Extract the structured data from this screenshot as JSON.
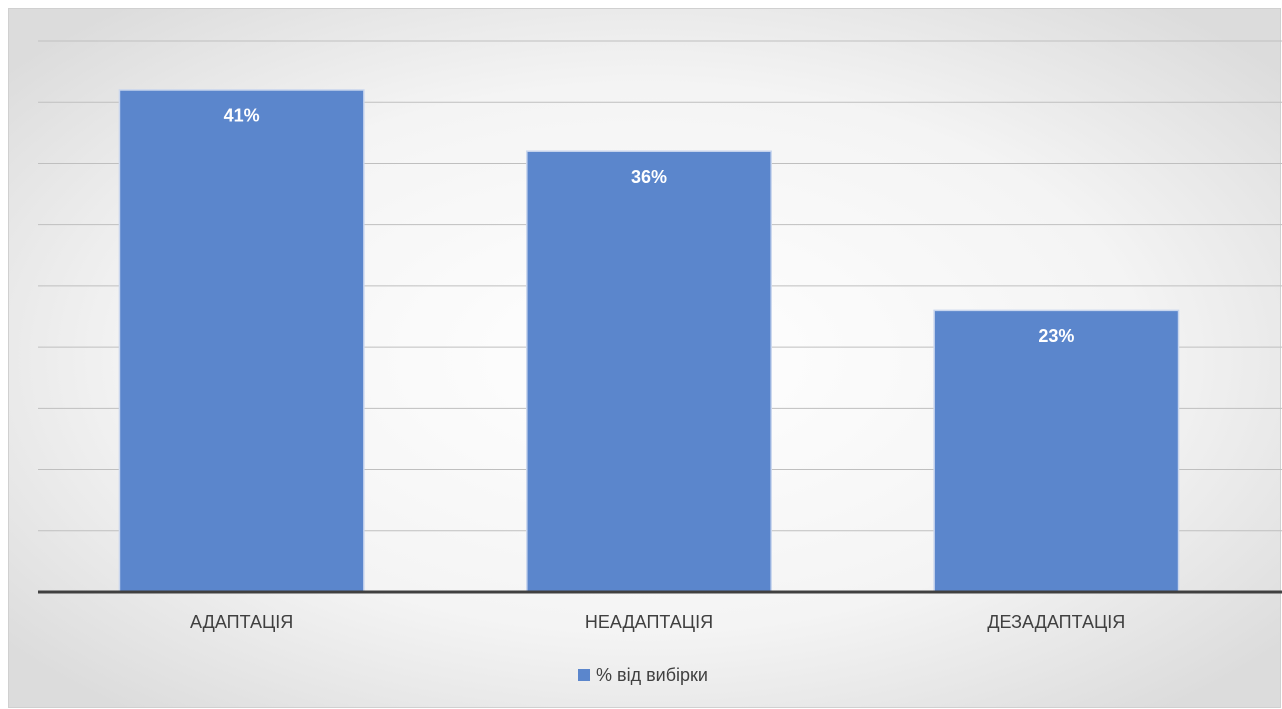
{
  "chart_data": {
    "type": "bar",
    "categories": [
      "АДАПТАЦІЯ",
      "НЕАДАПТАЦІЯ",
      "ДЕЗАДАПТАЦІЯ"
    ],
    "series": [
      {
        "name": "% від вибірки",
        "color": "#5b86cc",
        "values": [
          41,
          36,
          23
        ],
        "value_labels": [
          "41%",
          "36%",
          "23%"
        ]
      }
    ],
    "ylim": [
      0,
      45
    ],
    "yticks": [
      0,
      5,
      10,
      15,
      20,
      25,
      30,
      35,
      40,
      45
    ],
    "grid": true,
    "legend": "bottom"
  }
}
